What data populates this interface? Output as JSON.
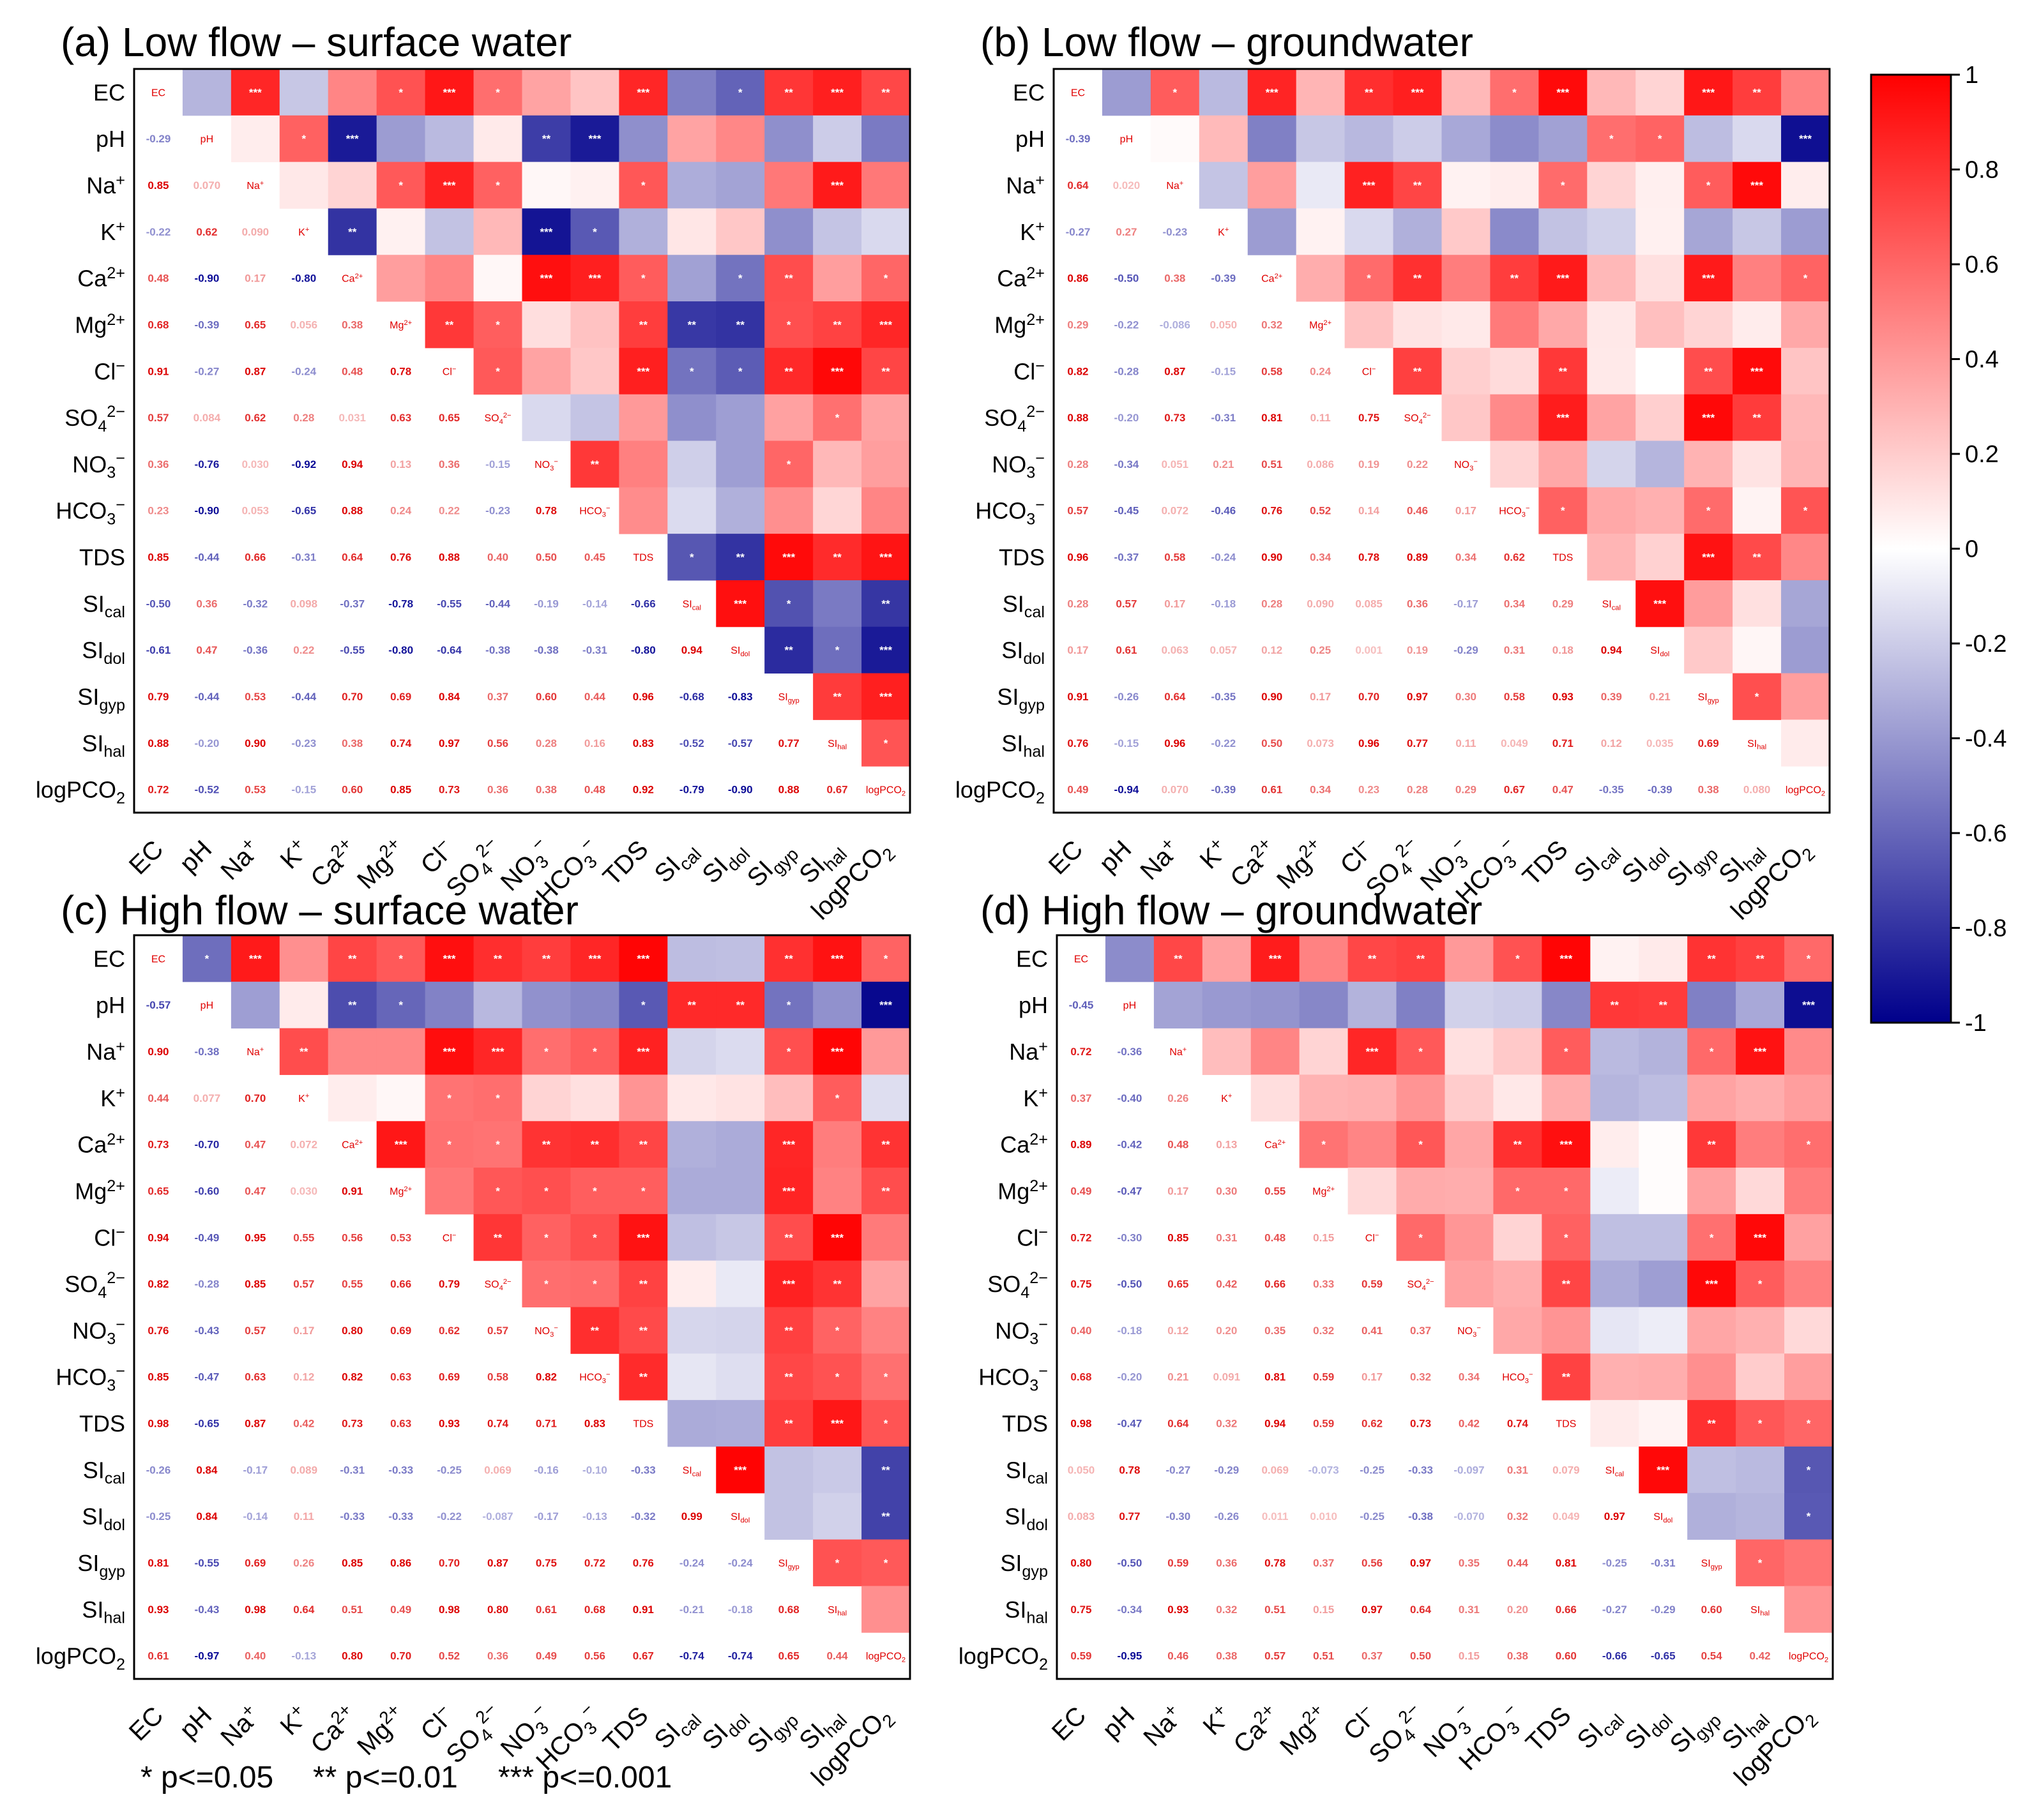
{
  "chart_data": [
    {
      "type": "heatmap",
      "title": "(a) Low flow – surface water",
      "variables": [
        "EC",
        "pH",
        "Na+",
        "K+",
        "Ca2+",
        "Mg2+",
        "Cl-",
        "SO42-",
        "NO3-",
        "HCO3-",
        "TDS",
        "SIcal",
        "SIdol",
        "SIgyp",
        "SIhal",
        "logPCO2"
      ],
      "lower": [
        [],
        [
          -0.29
        ],
        [
          0.85,
          0.07
        ],
        [
          -0.22,
          0.62,
          0.09
        ],
        [
          0.48,
          -0.9,
          0.17,
          -0.8
        ],
        [
          0.68,
          -0.39,
          0.65,
          0.056,
          0.38
        ],
        [
          0.91,
          -0.27,
          0.87,
          -0.24,
          0.48,
          0.78
        ],
        [
          0.57,
          0.084,
          0.62,
          0.28,
          0.031,
          0.63,
          0.65
        ],
        [
          0.36,
          -0.76,
          0.03,
          -0.92,
          0.94,
          0.13,
          0.36,
          -0.15
        ],
        [
          0.23,
          -0.9,
          0.053,
          -0.65,
          0.88,
          0.24,
          0.22,
          -0.23,
          0.78
        ],
        [
          0.85,
          -0.44,
          0.66,
          -0.31,
          0.64,
          0.76,
          0.88,
          0.4,
          0.5,
          0.45
        ],
        [
          -0.5,
          0.36,
          -0.32,
          0.098,
          -0.37,
          -0.78,
          -0.55,
          -0.44,
          -0.19,
          -0.14,
          -0.66
        ],
        [
          -0.61,
          0.47,
          -0.36,
          0.22,
          -0.55,
          -0.8,
          -0.64,
          -0.38,
          -0.38,
          -0.31,
          -0.8,
          0.94
        ],
        [
          0.79,
          -0.44,
          0.53,
          -0.44,
          0.7,
          0.69,
          0.84,
          0.37,
          0.6,
          0.44,
          0.96,
          -0.68,
          -0.83
        ],
        [
          0.88,
          -0.2,
          0.9,
          -0.23,
          0.38,
          0.74,
          0.97,
          0.56,
          0.28,
          0.16,
          0.83,
          -0.52,
          -0.57,
          0.77
        ],
        [
          0.72,
          -0.52,
          0.53,
          -0.15,
          0.6,
          0.85,
          0.73,
          0.36,
          0.38,
          0.48,
          0.92,
          -0.79,
          -0.9,
          0.88,
          0.67
        ]
      ]
    },
    {
      "type": "heatmap",
      "title": "(b) Low flow – groundwater",
      "variables": [
        "EC",
        "pH",
        "Na+",
        "K+",
        "Ca2+",
        "Mg2+",
        "Cl-",
        "SO42-",
        "NO3-",
        "HCO3-",
        "TDS",
        "SIcal",
        "SIdol",
        "SIgyp",
        "SIhal",
        "logPCO2"
      ],
      "lower": [
        [],
        [
          -0.39
        ],
        [
          0.64,
          0.02
        ],
        [
          -0.27,
          0.27,
          -0.23
        ],
        [
          0.86,
          -0.5,
          0.38,
          -0.39
        ],
        [
          0.29,
          -0.22,
          -0.086,
          0.05,
          0.32
        ],
        [
          0.82,
          -0.28,
          0.87,
          -0.15,
          0.58,
          0.24
        ],
        [
          0.88,
          -0.2,
          0.73,
          -0.31,
          0.81,
          0.11,
          0.75
        ],
        [
          0.28,
          -0.34,
          0.051,
          0.21,
          0.51,
          0.086,
          0.19,
          0.22
        ],
        [
          0.57,
          -0.45,
          0.072,
          -0.46,
          0.76,
          0.52,
          0.14,
          0.46,
          0.17
        ],
        [
          0.96,
          -0.37,
          0.58,
          -0.24,
          0.9,
          0.34,
          0.78,
          0.89,
          0.34,
          0.62
        ],
        [
          0.28,
          0.57,
          0.17,
          -0.18,
          0.28,
          0.09,
          0.085,
          0.36,
          -0.17,
          0.34,
          0.29
        ],
        [
          0.17,
          0.61,
          0.063,
          0.057,
          0.12,
          0.25,
          0.001,
          0.19,
          -0.29,
          0.31,
          0.18,
          0.94
        ],
        [
          0.91,
          -0.26,
          0.64,
          -0.35,
          0.9,
          0.17,
          0.7,
          0.97,
          0.3,
          0.58,
          0.93,
          0.39,
          0.21
        ],
        [
          0.76,
          -0.15,
          0.96,
          -0.22,
          0.5,
          0.073,
          0.96,
          0.77,
          0.11,
          0.049,
          0.71,
          0.12,
          0.035,
          0.69
        ],
        [
          0.49,
          -0.94,
          0.07,
          -0.39,
          0.61,
          0.34,
          0.23,
          0.28,
          0.29,
          0.67,
          0.47,
          -0.35,
          -0.39,
          0.38,
          0.08
        ]
      ]
    },
    {
      "type": "heatmap",
      "title": "(c) High flow – surface water",
      "variables": [
        "EC",
        "pH",
        "Na+",
        "K+",
        "Ca2+",
        "Mg2+",
        "Cl-",
        "SO42-",
        "NO3-",
        "HCO3-",
        "TDS",
        "SIcal",
        "SIdol",
        "SIgyp",
        "SIhal",
        "logPCO2"
      ],
      "lower": [
        [],
        [
          -0.57
        ],
        [
          0.9,
          -0.38
        ],
        [
          0.44,
          0.077,
          0.7
        ],
        [
          0.73,
          -0.7,
          0.47,
          0.072
        ],
        [
          0.65,
          -0.6,
          0.47,
          0.03,
          0.91
        ],
        [
          0.94,
          -0.49,
          0.95,
          0.55,
          0.56,
          0.53
        ],
        [
          0.82,
          -0.28,
          0.85,
          0.57,
          0.55,
          0.66,
          0.79
        ],
        [
          0.76,
          -0.43,
          0.57,
          0.17,
          0.8,
          0.69,
          0.62,
          0.57
        ],
        [
          0.85,
          -0.47,
          0.63,
          0.12,
          0.82,
          0.63,
          0.69,
          0.58,
          0.82
        ],
        [
          0.98,
          -0.65,
          0.87,
          0.42,
          0.73,
          0.63,
          0.93,
          0.74,
          0.71,
          0.83
        ],
        [
          -0.26,
          0.84,
          -0.17,
          0.089,
          -0.31,
          -0.33,
          -0.25,
          0.069,
          -0.16,
          -0.1,
          -0.33
        ],
        [
          -0.25,
          0.84,
          -0.14,
          0.11,
          -0.33,
          -0.33,
          -0.22,
          -0.087,
          -0.17,
          -0.13,
          -0.32,
          0.99
        ],
        [
          0.81,
          -0.55,
          0.69,
          0.26,
          0.85,
          0.86,
          0.7,
          0.87,
          0.75,
          0.72,
          0.76,
          -0.24,
          -0.24
        ],
        [
          0.93,
          -0.43,
          0.98,
          0.64,
          0.51,
          0.49,
          0.98,
          0.8,
          0.61,
          0.68,
          0.91,
          -0.21,
          -0.18,
          0.68
        ],
        [
          0.61,
          -0.97,
          0.4,
          -0.13,
          0.8,
          0.7,
          0.52,
          0.36,
          0.49,
          0.56,
          0.67,
          -0.74,
          -0.74,
          0.65,
          0.44
        ]
      ]
    },
    {
      "type": "heatmap",
      "title": "(d) High flow – groundwater",
      "variables": [
        "EC",
        "pH",
        "Na+",
        "K+",
        "Ca2+",
        "Mg2+",
        "Cl-",
        "SO42-",
        "NO3-",
        "HCO3-",
        "TDS",
        "SIcal",
        "SIdol",
        "SIgyp",
        "SIhal",
        "logPCO2"
      ],
      "lower": [
        [],
        [
          -0.45
        ],
        [
          0.72,
          -0.36
        ],
        [
          0.37,
          -0.4,
          0.26
        ],
        [
          0.89,
          -0.42,
          0.48,
          0.13
        ],
        [
          0.49,
          -0.47,
          0.17,
          0.3,
          0.55
        ],
        [
          0.72,
          -0.3,
          0.85,
          0.31,
          0.48,
          0.15
        ],
        [
          0.75,
          -0.5,
          0.65,
          0.42,
          0.66,
          0.33,
          0.59
        ],
        [
          0.4,
          -0.18,
          0.12,
          0.2,
          0.35,
          0.32,
          0.41,
          0.37
        ],
        [
          0.68,
          -0.2,
          0.21,
          0.091,
          0.81,
          0.59,
          0.17,
          0.32,
          0.34
        ],
        [
          0.98,
          -0.47,
          0.64,
          0.32,
          0.94,
          0.59,
          0.62,
          0.73,
          0.42,
          0.74
        ],
        [
          0.05,
          0.78,
          -0.27,
          -0.29,
          0.069,
          -0.073,
          -0.25,
          -0.33,
          -0.097,
          0.31,
          0.079
        ],
        [
          0.083,
          0.77,
          -0.3,
          -0.26,
          0.011,
          0.01,
          -0.25,
          -0.38,
          -0.07,
          0.32,
          0.049,
          0.97
        ],
        [
          0.8,
          -0.5,
          0.59,
          0.36,
          0.78,
          0.37,
          0.56,
          0.97,
          0.35,
          0.44,
          0.81,
          -0.25,
          -0.31
        ],
        [
          0.75,
          -0.34,
          0.93,
          0.32,
          0.51,
          0.15,
          0.97,
          0.64,
          0.31,
          0.2,
          0.66,
          -0.27,
          -0.29,
          0.6
        ],
        [
          0.59,
          -0.95,
          0.46,
          0.38,
          0.57,
          0.51,
          0.37,
          0.5,
          0.15,
          0.38,
          0.6,
          -0.66,
          -0.65,
          0.54,
          0.42
        ]
      ]
    }
  ],
  "colorbar": {
    "min": -1,
    "max": 1,
    "ticks": [
      "1",
      "0.8",
      "0.6",
      "0.4",
      "0.2",
      "0",
      "-0.2",
      "-0.4",
      "-0.6",
      "-0.8",
      "-1"
    ],
    "colors": {
      "negative": "#00008b",
      "neutral": "#ffffff",
      "positive": "#ff0000"
    }
  },
  "significance_legend": {
    "one": "* p<=0.05",
    "two": "** p<=0.01",
    "three": "*** p<=0.001"
  }
}
